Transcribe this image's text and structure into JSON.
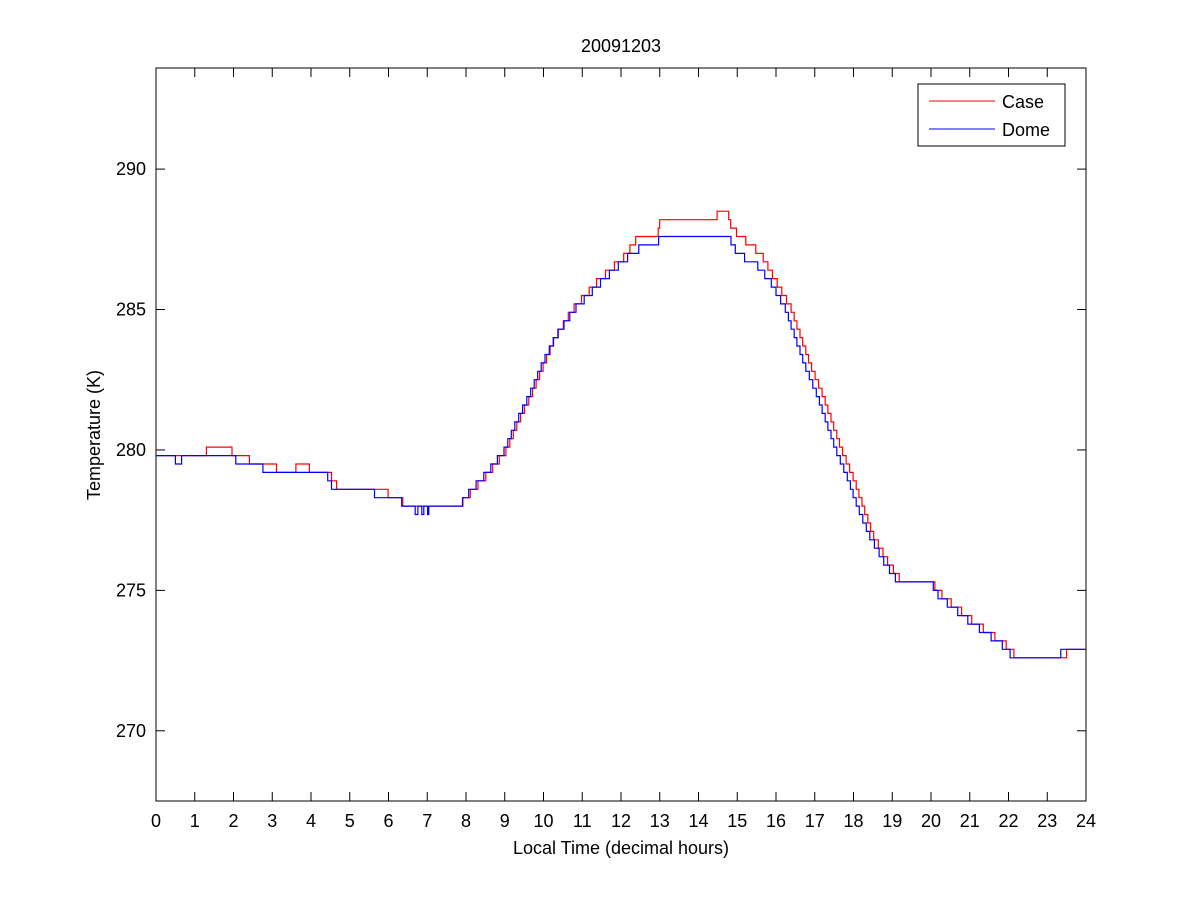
{
  "chart_data": {
    "type": "line",
    "title": "20091203",
    "xlabel": "Local Time (decimal hours)",
    "ylabel": "Temperature (K)",
    "xlim": [
      0,
      24
    ],
    "ylim": [
      267.5,
      293.6
    ],
    "xticks": [
      0,
      1,
      2,
      3,
      4,
      5,
      6,
      7,
      8,
      9,
      10,
      11,
      12,
      13,
      14,
      15,
      16,
      17,
      18,
      19,
      20,
      21,
      22,
      23,
      24
    ],
    "yticks": [
      270,
      275,
      280,
      285,
      290
    ],
    "grid": false,
    "legend_position": "top-right",
    "step_quantum_K": 0.3,
    "series": [
      {
        "name": "Case",
        "color": "#ff0000",
        "points": [
          [
            0,
            279.8
          ],
          [
            1.29,
            279.8
          ],
          [
            1.3,
            280.1
          ],
          [
            1.95,
            280.1
          ],
          [
            1.96,
            279.8
          ],
          [
            2.4,
            279.8
          ],
          [
            2.41,
            279.5
          ],
          [
            3.1,
            279.5
          ],
          [
            3.11,
            279.2
          ],
          [
            3.6,
            279.2
          ],
          [
            3.61,
            279.5
          ],
          [
            3.95,
            279.5
          ],
          [
            3.96,
            279.2
          ],
          [
            4.5,
            279.2
          ],
          [
            4.55,
            278.9
          ],
          [
            4.75,
            278.6
          ],
          [
            5.95,
            278.6
          ],
          [
            6.0,
            278.35
          ],
          [
            6.55,
            278.05
          ],
          [
            7.85,
            278.05
          ],
          [
            8.2,
            278.6
          ],
          [
            8.6,
            279.2
          ],
          [
            9.05,
            280
          ],
          [
            9.35,
            281
          ],
          [
            9.7,
            282
          ],
          [
            10.0,
            283
          ],
          [
            10.3,
            284
          ],
          [
            10.75,
            285
          ],
          [
            11.4,
            286
          ],
          [
            12.1,
            286.9
          ],
          [
            12.5,
            287.7
          ],
          [
            12.95,
            287.7
          ],
          [
            13.0,
            288.1
          ],
          [
            14.45,
            288.1
          ],
          [
            14.5,
            288.6
          ],
          [
            14.75,
            288.6
          ],
          [
            14.8,
            288.1
          ],
          [
            15.0,
            287.7
          ],
          [
            15.6,
            287
          ],
          [
            16.0,
            286
          ],
          [
            16.4,
            285
          ],
          [
            16.65,
            284
          ],
          [
            16.9,
            283
          ],
          [
            17.2,
            282
          ],
          [
            17.45,
            281
          ],
          [
            17.7,
            280
          ],
          [
            18.0,
            279
          ],
          [
            18.25,
            278
          ],
          [
            18.5,
            277
          ],
          [
            18.9,
            276
          ],
          [
            19.2,
            275.4
          ],
          [
            19.95,
            275.4
          ],
          [
            20.3,
            274.8
          ],
          [
            21.0,
            274
          ],
          [
            21.9,
            273.1
          ],
          [
            22.3,
            272.5
          ],
          [
            23.45,
            272.5
          ],
          [
            23.5,
            272.8
          ],
          [
            24,
            272.8
          ]
        ]
      },
      {
        "name": "Dome",
        "color": "#0000ff",
        "points": [
          [
            0,
            279.8
          ],
          [
            0.49,
            279.8
          ],
          [
            0.5,
            279.5
          ],
          [
            0.65,
            279.5
          ],
          [
            0.66,
            279.8
          ],
          [
            2.05,
            279.8
          ],
          [
            2.06,
            279.5
          ],
          [
            2.75,
            279.5
          ],
          [
            2.76,
            279.2
          ],
          [
            4.4,
            279.2
          ],
          [
            4.45,
            278.9
          ],
          [
            4.6,
            278.6
          ],
          [
            5.6,
            278.6
          ],
          [
            5.65,
            278.35
          ],
          [
            6.3,
            278.35
          ],
          [
            6.35,
            278.05
          ],
          [
            6.68,
            278.05
          ],
          [
            6.69,
            277.75
          ],
          [
            6.75,
            277.75
          ],
          [
            6.76,
            278.05
          ],
          [
            6.85,
            278.05
          ],
          [
            6.86,
            277.75
          ],
          [
            6.9,
            277.75
          ],
          [
            6.91,
            278.05
          ],
          [
            7.0,
            278.05
          ],
          [
            7.01,
            277.75
          ],
          [
            7.03,
            277.75
          ],
          [
            7.04,
            278.05
          ],
          [
            7.85,
            278.05
          ],
          [
            8.15,
            278.6
          ],
          [
            8.55,
            279.2
          ],
          [
            9.0,
            280
          ],
          [
            9.3,
            281
          ],
          [
            9.65,
            282
          ],
          [
            9.95,
            283
          ],
          [
            10.3,
            284
          ],
          [
            10.8,
            285
          ],
          [
            11.5,
            286
          ],
          [
            12.2,
            286.9
          ],
          [
            12.6,
            287.3
          ],
          [
            12.95,
            287.3
          ],
          [
            13.0,
            287.7
          ],
          [
            14.75,
            287.7
          ],
          [
            15.0,
            287
          ],
          [
            15.5,
            286.6
          ],
          [
            15.85,
            286
          ],
          [
            16.25,
            285
          ],
          [
            16.5,
            284
          ],
          [
            16.75,
            283
          ],
          [
            17.05,
            282
          ],
          [
            17.3,
            281
          ],
          [
            17.55,
            280
          ],
          [
            17.85,
            279
          ],
          [
            18.1,
            278
          ],
          [
            18.4,
            277
          ],
          [
            18.8,
            276
          ],
          [
            19.1,
            275.4
          ],
          [
            19.95,
            275.4
          ],
          [
            20.2,
            274.8
          ],
          [
            20.9,
            274
          ],
          [
            21.8,
            273.1
          ],
          [
            22.2,
            272.5
          ],
          [
            23.3,
            272.5
          ],
          [
            23.35,
            272.8
          ],
          [
            24,
            272.8
          ]
        ]
      }
    ]
  }
}
